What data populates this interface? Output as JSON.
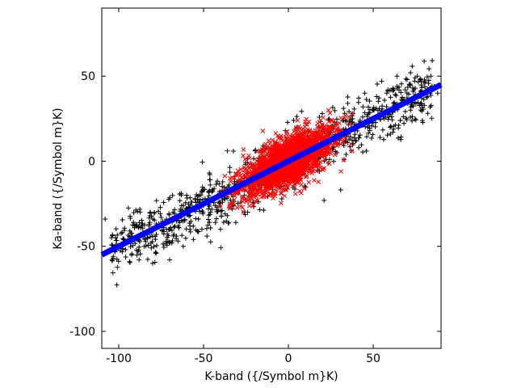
{
  "chart_data": {
    "type": "scatter",
    "xlabel": "K-band ({/Symbol m}K)",
    "ylabel": "Ka-band ({/Symbol m}K)",
    "xlim": [
      -110,
      90
    ],
    "ylim": [
      -110,
      90
    ],
    "x_ticks": [
      -100,
      -50,
      0,
      50
    ],
    "y_ticks": [
      -100,
      -50,
      0,
      50
    ],
    "grid": false,
    "legend": "none",
    "series": [
      {
        "marker": "plus",
        "color": "#000000",
        "description_points": [
          [
            -108,
            -34
          ],
          [
            -104,
            -58
          ],
          [
            -98,
            -42
          ],
          [
            -96,
            -52
          ],
          [
            -93,
            -46
          ],
          [
            -90,
            -38
          ],
          [
            -88,
            -58
          ],
          [
            -85,
            -50
          ],
          [
            -82,
            -37
          ],
          [
            -80,
            -44
          ],
          [
            -78,
            -54
          ],
          [
            -75,
            -33
          ],
          [
            -72,
            -48
          ],
          [
            -70,
            -40
          ],
          [
            -68,
            -30
          ],
          [
            -66,
            -44
          ],
          [
            -64,
            -36
          ],
          [
            -62,
            -50
          ],
          [
            -60,
            -28
          ],
          [
            -58,
            -38
          ],
          [
            -56,
            -46
          ],
          [
            -55,
            -22
          ],
          [
            -53,
            -34
          ],
          [
            -51,
            -40
          ],
          [
            -50,
            -26
          ],
          [
            -48,
            -44
          ],
          [
            -46,
            -30
          ],
          [
            -45,
            -18
          ],
          [
            -43,
            -36
          ],
          [
            -41,
            -24
          ],
          [
            -40,
            -40
          ],
          [
            -38,
            -20
          ],
          [
            -36,
            -32
          ],
          [
            -35,
            -14
          ],
          [
            -33,
            -28
          ],
          [
            -31,
            -36
          ],
          [
            -30,
            -16
          ],
          [
            -28,
            -24
          ],
          [
            -26,
            -10
          ],
          [
            -24,
            -30
          ],
          [
            30,
            10
          ],
          [
            32,
            24
          ],
          [
            34,
            4
          ],
          [
            36,
            18
          ],
          [
            38,
            28
          ],
          [
            40,
            12
          ],
          [
            42,
            22
          ],
          [
            44,
            32
          ],
          [
            46,
            6
          ],
          [
            48,
            18
          ],
          [
            50,
            30
          ],
          [
            52,
            38
          ],
          [
            54,
            14
          ],
          [
            56,
            26
          ],
          [
            58,
            40
          ],
          [
            60,
            20
          ],
          [
            62,
            34
          ],
          [
            64,
            44
          ],
          [
            66,
            24
          ],
          [
            68,
            36
          ],
          [
            70,
            48
          ],
          [
            72,
            30
          ],
          [
            74,
            42
          ],
          [
            76,
            50
          ],
          [
            78,
            34
          ],
          [
            80,
            46
          ],
          [
            82,
            38
          ],
          [
            84,
            50
          ],
          [
            86,
            44
          ],
          [
            88,
            40
          ],
          [
            72,
            52
          ],
          [
            64,
            50
          ],
          [
            55,
            47
          ],
          [
            45,
            40
          ],
          [
            35,
            34
          ],
          [
            -15,
            -8
          ],
          [
            -10,
            -4
          ],
          [
            20,
            28
          ],
          [
            18,
            20
          ],
          [
            -60,
            -20
          ],
          [
            -70,
            -58
          ],
          [
            -80,
            -60
          ]
        ]
      },
      {
        "marker": "cross",
        "color": "#ff0000",
        "x_range": [
          -45,
          40
        ],
        "y_range": [
          -40,
          32
        ]
      },
      {
        "marker": "line-fit",
        "color": "#0000ff",
        "slope": 0.5,
        "intercept": 0
      }
    ]
  }
}
